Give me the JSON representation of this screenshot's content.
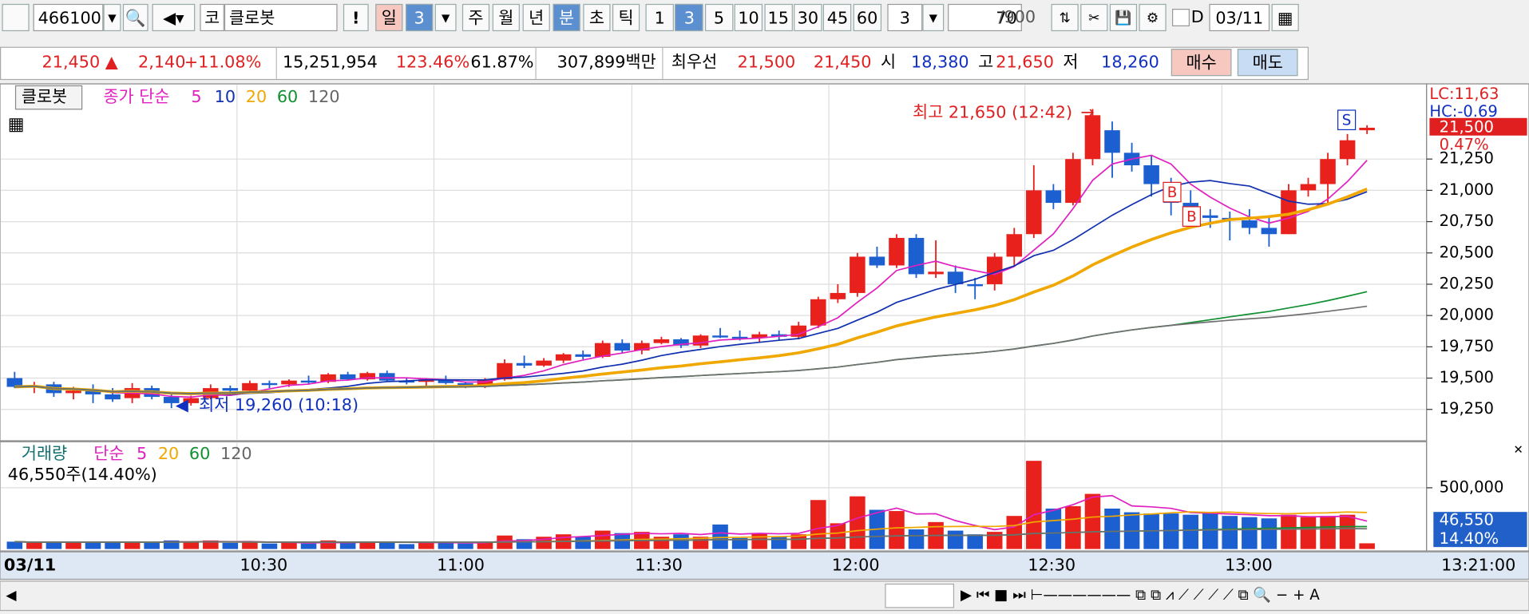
{
  "toolbar": {
    "code": "466100",
    "market": "코",
    "name": "클로봇",
    "alert": "!",
    "periods": [
      "일",
      "3",
      "주",
      "월",
      "년",
      "분",
      "초",
      "틱"
    ],
    "minutes": [
      "1",
      "3",
      "5",
      "10",
      "15",
      "30",
      "45",
      "60"
    ],
    "interval": "3",
    "count": "70",
    "count_max": "/900",
    "d_label": "D",
    "date": "03/11"
  },
  "quote": {
    "price": "21,450 ▲",
    "change": "2,140",
    "change_pct": "+11.08%",
    "volume": "15,251,954",
    "vol_ratio": "123.46%",
    "turnover": "61.87%",
    "amount": "307,899백만",
    "best_label": "최우선",
    "ask": "21,500",
    "bid": "21,450",
    "open_label": "시",
    "open": "18,380",
    "high_label": "고",
    "high": "21,650",
    "low_label": "저",
    "low": "18,260",
    "buy": "매수",
    "sell": "매도"
  },
  "chart_data": [
    {
      "type": "candlestick",
      "name": "클로봇",
      "up_color": "#e8211c",
      "down_color": "#1c5fd0",
      "ma_label": "종가 단순",
      "ma": [
        {
          "period": 5,
          "color": "#e020c0"
        },
        {
          "period": 10,
          "color": "#1030b0"
        },
        {
          "period": 20,
          "color": "#f0a800"
        },
        {
          "period": 60,
          "color": "#109030"
        },
        {
          "period": 120,
          "color": "#707070"
        }
      ],
      "open": [
        19500,
        19430,
        19450,
        19380,
        19400,
        19370,
        19340,
        19420,
        19350,
        19300,
        19340,
        19420,
        19400,
        19460,
        19450,
        19480,
        19470,
        19530,
        19490,
        19540,
        19480,
        19470,
        19490,
        19460,
        19440,
        19490,
        19620,
        19600,
        19640,
        19690,
        19670,
        19780,
        19720,
        19780,
        19810,
        19760,
        19840,
        19830,
        19820,
        19850,
        19830,
        19920,
        20130,
        20180,
        20470,
        20400,
        20620,
        20330,
        20350,
        20250,
        20250,
        20470,
        20650,
        21000,
        20900,
        21250,
        21480,
        21300,
        21200,
        21050,
        20900,
        20800,
        20780,
        20760,
        20700,
        20650,
        21000,
        21050,
        21250,
        21480
      ],
      "high": [
        19550,
        19470,
        19470,
        19430,
        19450,
        19420,
        19460,
        19440,
        19370,
        19360,
        19450,
        19440,
        19480,
        19480,
        19490,
        19520,
        19540,
        19550,
        19550,
        19560,
        19500,
        19500,
        19520,
        19470,
        19500,
        19650,
        19680,
        19660,
        19700,
        19720,
        19800,
        19810,
        19800,
        19830,
        19820,
        19850,
        19900,
        19880,
        19870,
        19880,
        19950,
        20150,
        20250,
        20500,
        20550,
        20650,
        20650,
        20600,
        20400,
        20300,
        20500,
        20700,
        21200,
        21050,
        21300,
        21650,
        21550,
        21380,
        21280,
        21100,
        21000,
        20850,
        20830,
        20850,
        20790,
        21050,
        21100,
        21300,
        21450,
        21520
      ],
      "low": [
        19420,
        19380,
        19350,
        19330,
        19300,
        19310,
        19300,
        19330,
        19260,
        19280,
        19330,
        19380,
        19390,
        19420,
        19430,
        19450,
        19460,
        19480,
        19480,
        19470,
        19450,
        19420,
        19450,
        19420,
        19420,
        19480,
        19580,
        19590,
        19620,
        19650,
        19660,
        19700,
        19690,
        19770,
        19740,
        19740,
        19820,
        19800,
        19790,
        19800,
        19810,
        19900,
        20100,
        20150,
        20380,
        20380,
        20300,
        20300,
        20180,
        20130,
        20200,
        20400,
        20620,
        20850,
        20880,
        21200,
        21100,
        21150,
        20950,
        20800,
        20700,
        20700,
        20600,
        20650,
        20550,
        20650,
        20950,
        20900,
        21200,
        21450
      ],
      "close": [
        19430,
        19440,
        19380,
        19400,
        19370,
        19330,
        19420,
        19350,
        19300,
        19340,
        19420,
        19400,
        19460,
        19450,
        19480,
        19470,
        19530,
        19490,
        19540,
        19480,
        19470,
        19490,
        19460,
        19440,
        19490,
        19620,
        19600,
        19640,
        19690,
        19670,
        19780,
        19720,
        19780,
        19810,
        19760,
        19840,
        19830,
        19820,
        19850,
        19830,
        19920,
        20130,
        20180,
        20470,
        20400,
        20620,
        20330,
        20350,
        20250,
        20240,
        20470,
        20650,
        21000,
        20900,
        21250,
        21600,
        21300,
        21200,
        21050,
        20900,
        20800,
        20780,
        20760,
        20700,
        20650,
        21000,
        21050,
        21250,
        21400,
        21500
      ],
      "ylim": [
        19015,
        21835
      ],
      "yticks": [
        {
          "value": 19250,
          "label": "19,250"
        },
        {
          "value": 19500,
          "label": "19,500"
        },
        {
          "value": 19750,
          "label": "19,750"
        },
        {
          "value": 20000,
          "label": "20,000"
        },
        {
          "value": 20250,
          "label": "20,250"
        },
        {
          "value": 20500,
          "label": "20,500"
        },
        {
          "value": 20750,
          "label": "20,750"
        },
        {
          "value": 21000,
          "label": "21,000"
        },
        {
          "value": 21250,
          "label": "21,250"
        }
      ],
      "annotations": [
        "최고 21,650 (12:42)",
        "최저 19,260 (10:18)"
      ],
      "signals": [
        "B",
        "B",
        "S"
      ],
      "right_labels": {
        "lc": "LC:11,63",
        "hc": "HC:-0.69",
        "last": "21,500",
        "last_pct": "0.47%"
      },
      "x_labels": [
        "03/11",
        "10:30",
        "11:00",
        "11:30",
        "12:00",
        "12:30",
        "13:00"
      ],
      "cursor_time": "13:21:00"
    },
    {
      "type": "bar",
      "name": "거래량",
      "ma_label": "단순",
      "ma": [
        {
          "period": 5,
          "color": "#e020c0"
        },
        {
          "period": 20,
          "color": "#f0a800"
        },
        {
          "period": 60,
          "color": "#109030"
        },
        {
          "period": 120,
          "color": "#707070"
        }
      ],
      "values": [
        60000,
        50000,
        60000,
        50000,
        60000,
        55000,
        60000,
        50000,
        70000,
        60000,
        70000,
        50000,
        55000,
        45000,
        50000,
        45000,
        70000,
        50000,
        60000,
        55000,
        40000,
        60000,
        50000,
        45000,
        60000,
        110000,
        80000,
        100000,
        120000,
        100000,
        150000,
        130000,
        140000,
        100000,
        120000,
        100000,
        200000,
        90000,
        130000,
        100000,
        120000,
        400000,
        210000,
        430000,
        320000,
        310000,
        160000,
        220000,
        150000,
        120000,
        140000,
        270000,
        720000,
        330000,
        350000,
        450000,
        330000,
        300000,
        290000,
        290000,
        280000,
        300000,
        270000,
        260000,
        250000,
        280000,
        260000,
        270000,
        280000,
        46550
      ],
      "ylim": [
        0,
        860000
      ],
      "yticks": [
        {
          "value": 500000,
          "label": "500,000"
        }
      ],
      "last_label": "46,550주(14.40%)",
      "right_labels": {
        "last": "46,550",
        "pct": "14.40%"
      }
    }
  ]
}
